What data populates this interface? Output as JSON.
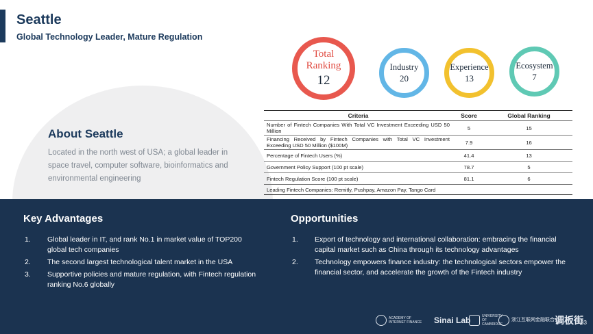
{
  "header": {
    "title": "Seattle",
    "subtitle": "Global Technology Leader, Mature Regulation"
  },
  "about": {
    "title": "About Seattle",
    "text": "Located in the north west of USA; a global leader in space travel, computer software, bioinformatics and environmental engineering"
  },
  "rankings": {
    "total_label_1": "Total",
    "total_label_2": "Ranking",
    "total_value": "12",
    "industry_label": "Industry",
    "industry_value": "20",
    "experience_label": "Experience",
    "experience_value": "13",
    "ecosystem_label": "Ecosystem",
    "ecosystem_value": "7",
    "colors": {
      "total": "#e8584e",
      "industry": "#62b6e6",
      "experience": "#f2c12e",
      "ecosystem": "#5fc9b4"
    }
  },
  "table": {
    "headers": [
      "Criteria",
      "Score",
      "Global Ranking"
    ],
    "rows": [
      {
        "criteria": "Number of Fintech Companies With Total VC Investment Exceeding USD 50 Million",
        "score": "5",
        "rank": "15"
      },
      {
        "criteria": "Financing Received by Fintech Companies with Total VC Investment Exceeding USD 50 Million ($100M)",
        "score": "7.9",
        "rank": "16"
      },
      {
        "criteria": "Percentage of Fintech Users (%)",
        "score": "41.4",
        "rank": "13"
      },
      {
        "criteria": "Government Policy Support (100 pt scale)",
        "score": "78.7",
        "rank": "5"
      },
      {
        "criteria": "Fintech Regulation Score (100 pt scale)",
        "score": "81.1",
        "rank": "6"
      }
    ],
    "footer": "Leading Fintech Companies: Remitly, Pushpay, Amazon Pay, Tango Card"
  },
  "key_advantages": {
    "title": "Key Advantages",
    "items": [
      {
        "n": "1.",
        "text": "Global leader in IT, and rank No.1 in market value of TOP200 global tech companies"
      },
      {
        "n": "2.",
        "text": "The second largest technological talent market in the USA"
      },
      {
        "n": "3.",
        "text": "Supportive policies and mature regulation, with Fintech regulation ranking No.6 globally"
      }
    ]
  },
  "opportunities": {
    "title": "Opportunities",
    "items": [
      {
        "n": "1.",
        "text": "Export of technology and international collaboration: embracing the financial capital market such as China through its technology advantages"
      },
      {
        "n": "2.",
        "text": "Technology empowers finance industry: the technological sectors empower the financial sector, and accelerate the growth of the Fintech industry"
      }
    ]
  },
  "footer": {
    "logo_zju": "ACADEMY OF INTERNET FINANCE",
    "logo_sinai": "Sinai Lab",
    "logo_cambridge": "UNIVERSITY OF CAMBRIDGE",
    "logo_zhejiang": "浙江互联网金融联合会",
    "logo_lbj": "调板街",
    "page": "33"
  }
}
